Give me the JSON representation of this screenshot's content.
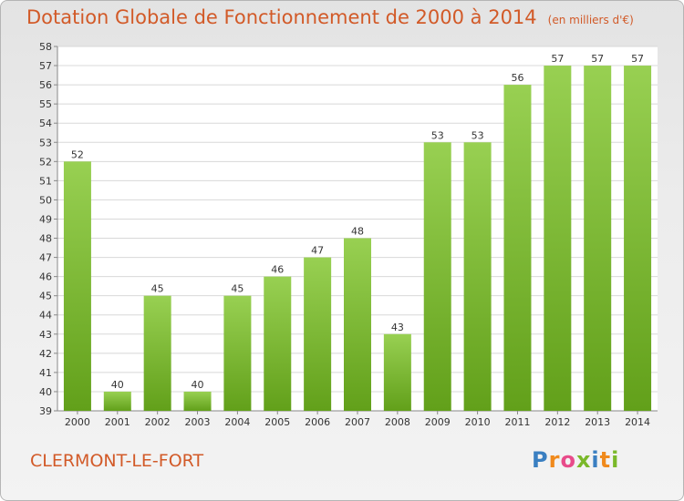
{
  "chart_data": {
    "type": "bar",
    "title": "Dotation Globale de Fonctionnement de 2000 à 2014",
    "subtitle": "(en milliers d'€)",
    "categories": [
      "2000",
      "2001",
      "2002",
      "2003",
      "2004",
      "2005",
      "2006",
      "2007",
      "2008",
      "2009",
      "2010",
      "2011",
      "2012",
      "2013",
      "2014"
    ],
    "values": [
      52,
      40,
      45,
      40,
      45,
      46,
      47,
      48,
      43,
      53,
      53,
      56,
      57,
      57,
      57
    ],
    "ylim": [
      39,
      58
    ],
    "yticks": [
      39,
      40,
      41,
      42,
      43,
      44,
      45,
      46,
      47,
      48,
      49,
      50,
      51,
      52,
      53,
      54,
      55,
      56,
      57,
      58
    ],
    "grid": true,
    "bar_color": "#7fbe2e",
    "xlabel": "",
    "ylabel": ""
  },
  "commune": "CLERMONT-LE-FORT",
  "logo": {
    "letters": [
      "P",
      "r",
      "o",
      "x",
      "i",
      "t",
      "i"
    ],
    "colors": [
      "#3a7fc1",
      "#f08a1c",
      "#e84b8a",
      "#7ab829",
      "#3a7fc1",
      "#f08a1c",
      "#7ab829"
    ]
  }
}
